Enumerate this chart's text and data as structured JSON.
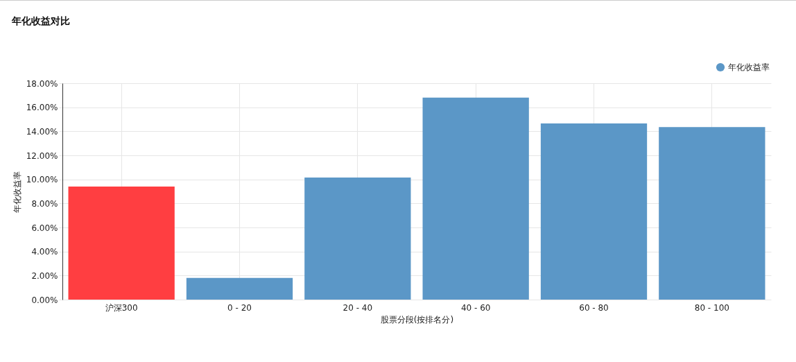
{
  "chart_data": {
    "type": "bar",
    "title": "年化收益对比",
    "xlabel": "股票分段(按排名分)",
    "ylabel": "年化收益率",
    "categories": [
      "沪深300",
      "0 - 20",
      "20 - 40",
      "40 - 60",
      "60 - 80",
      "80 - 100"
    ],
    "series": [
      {
        "name": "年化收益率",
        "color": "#5b97c7",
        "colors": [
          "#ff3e41",
          "#5b97c7",
          "#5b97c7",
          "#5b97c7",
          "#5b97c7",
          "#5b97c7"
        ],
        "values": [
          9.4,
          1.8,
          10.15,
          16.8,
          14.65,
          14.35
        ]
      }
    ],
    "ylim": [
      0,
      18
    ],
    "yticks": [
      {
        "value": 0,
        "label": "0.00%"
      },
      {
        "value": 2,
        "label": "2.00%"
      },
      {
        "value": 4,
        "label": "4.00%"
      },
      {
        "value": 6,
        "label": "6.00%"
      },
      {
        "value": 8,
        "label": "8.00%"
      },
      {
        "value": 10,
        "label": "10.00%"
      },
      {
        "value": 12,
        "label": "12.00%"
      },
      {
        "value": 14,
        "label": "14.00%"
      },
      {
        "value": 16,
        "label": "16.00%"
      },
      {
        "value": 18,
        "label": "18.00%"
      }
    ],
    "grid": true,
    "legend": "top right"
  }
}
